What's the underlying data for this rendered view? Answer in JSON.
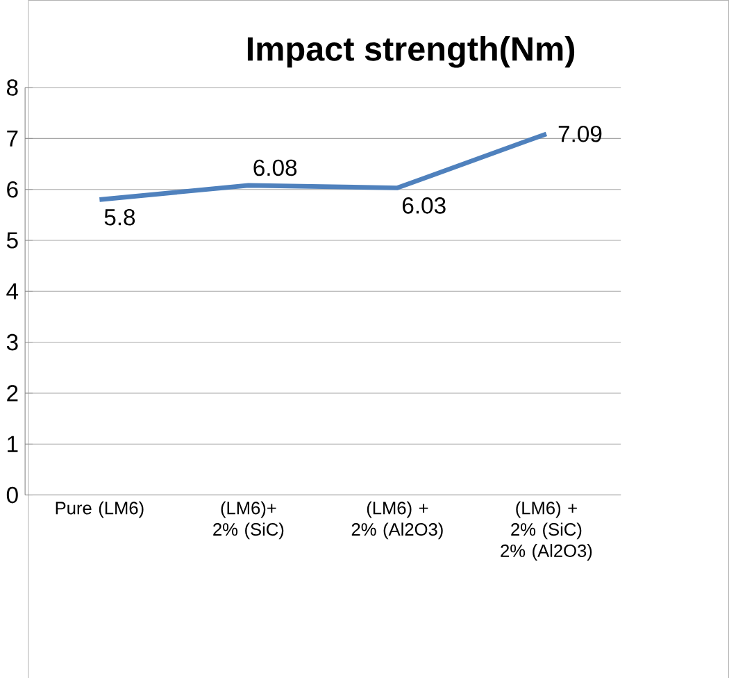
{
  "chart_data": {
    "type": "line",
    "title": "Impact strength(Nm)",
    "categories": [
      "Pure (LM6)",
      "(LM6)+ 2% (SiC)",
      "(LM6) + 2% (Al2O3)",
      "(LM6) + 2% (SiC) 2% (Al2O3)"
    ],
    "values": [
      5.8,
      6.08,
      6.03,
      7.09
    ],
    "color": "#4f81bd",
    "ylim": [
      0,
      8
    ],
    "yticks": [
      0,
      1,
      2,
      3,
      4,
      5,
      6,
      7,
      8
    ],
    "grid": "y",
    "data_labels": true,
    "marker": "none",
    "line_style": "solid"
  }
}
